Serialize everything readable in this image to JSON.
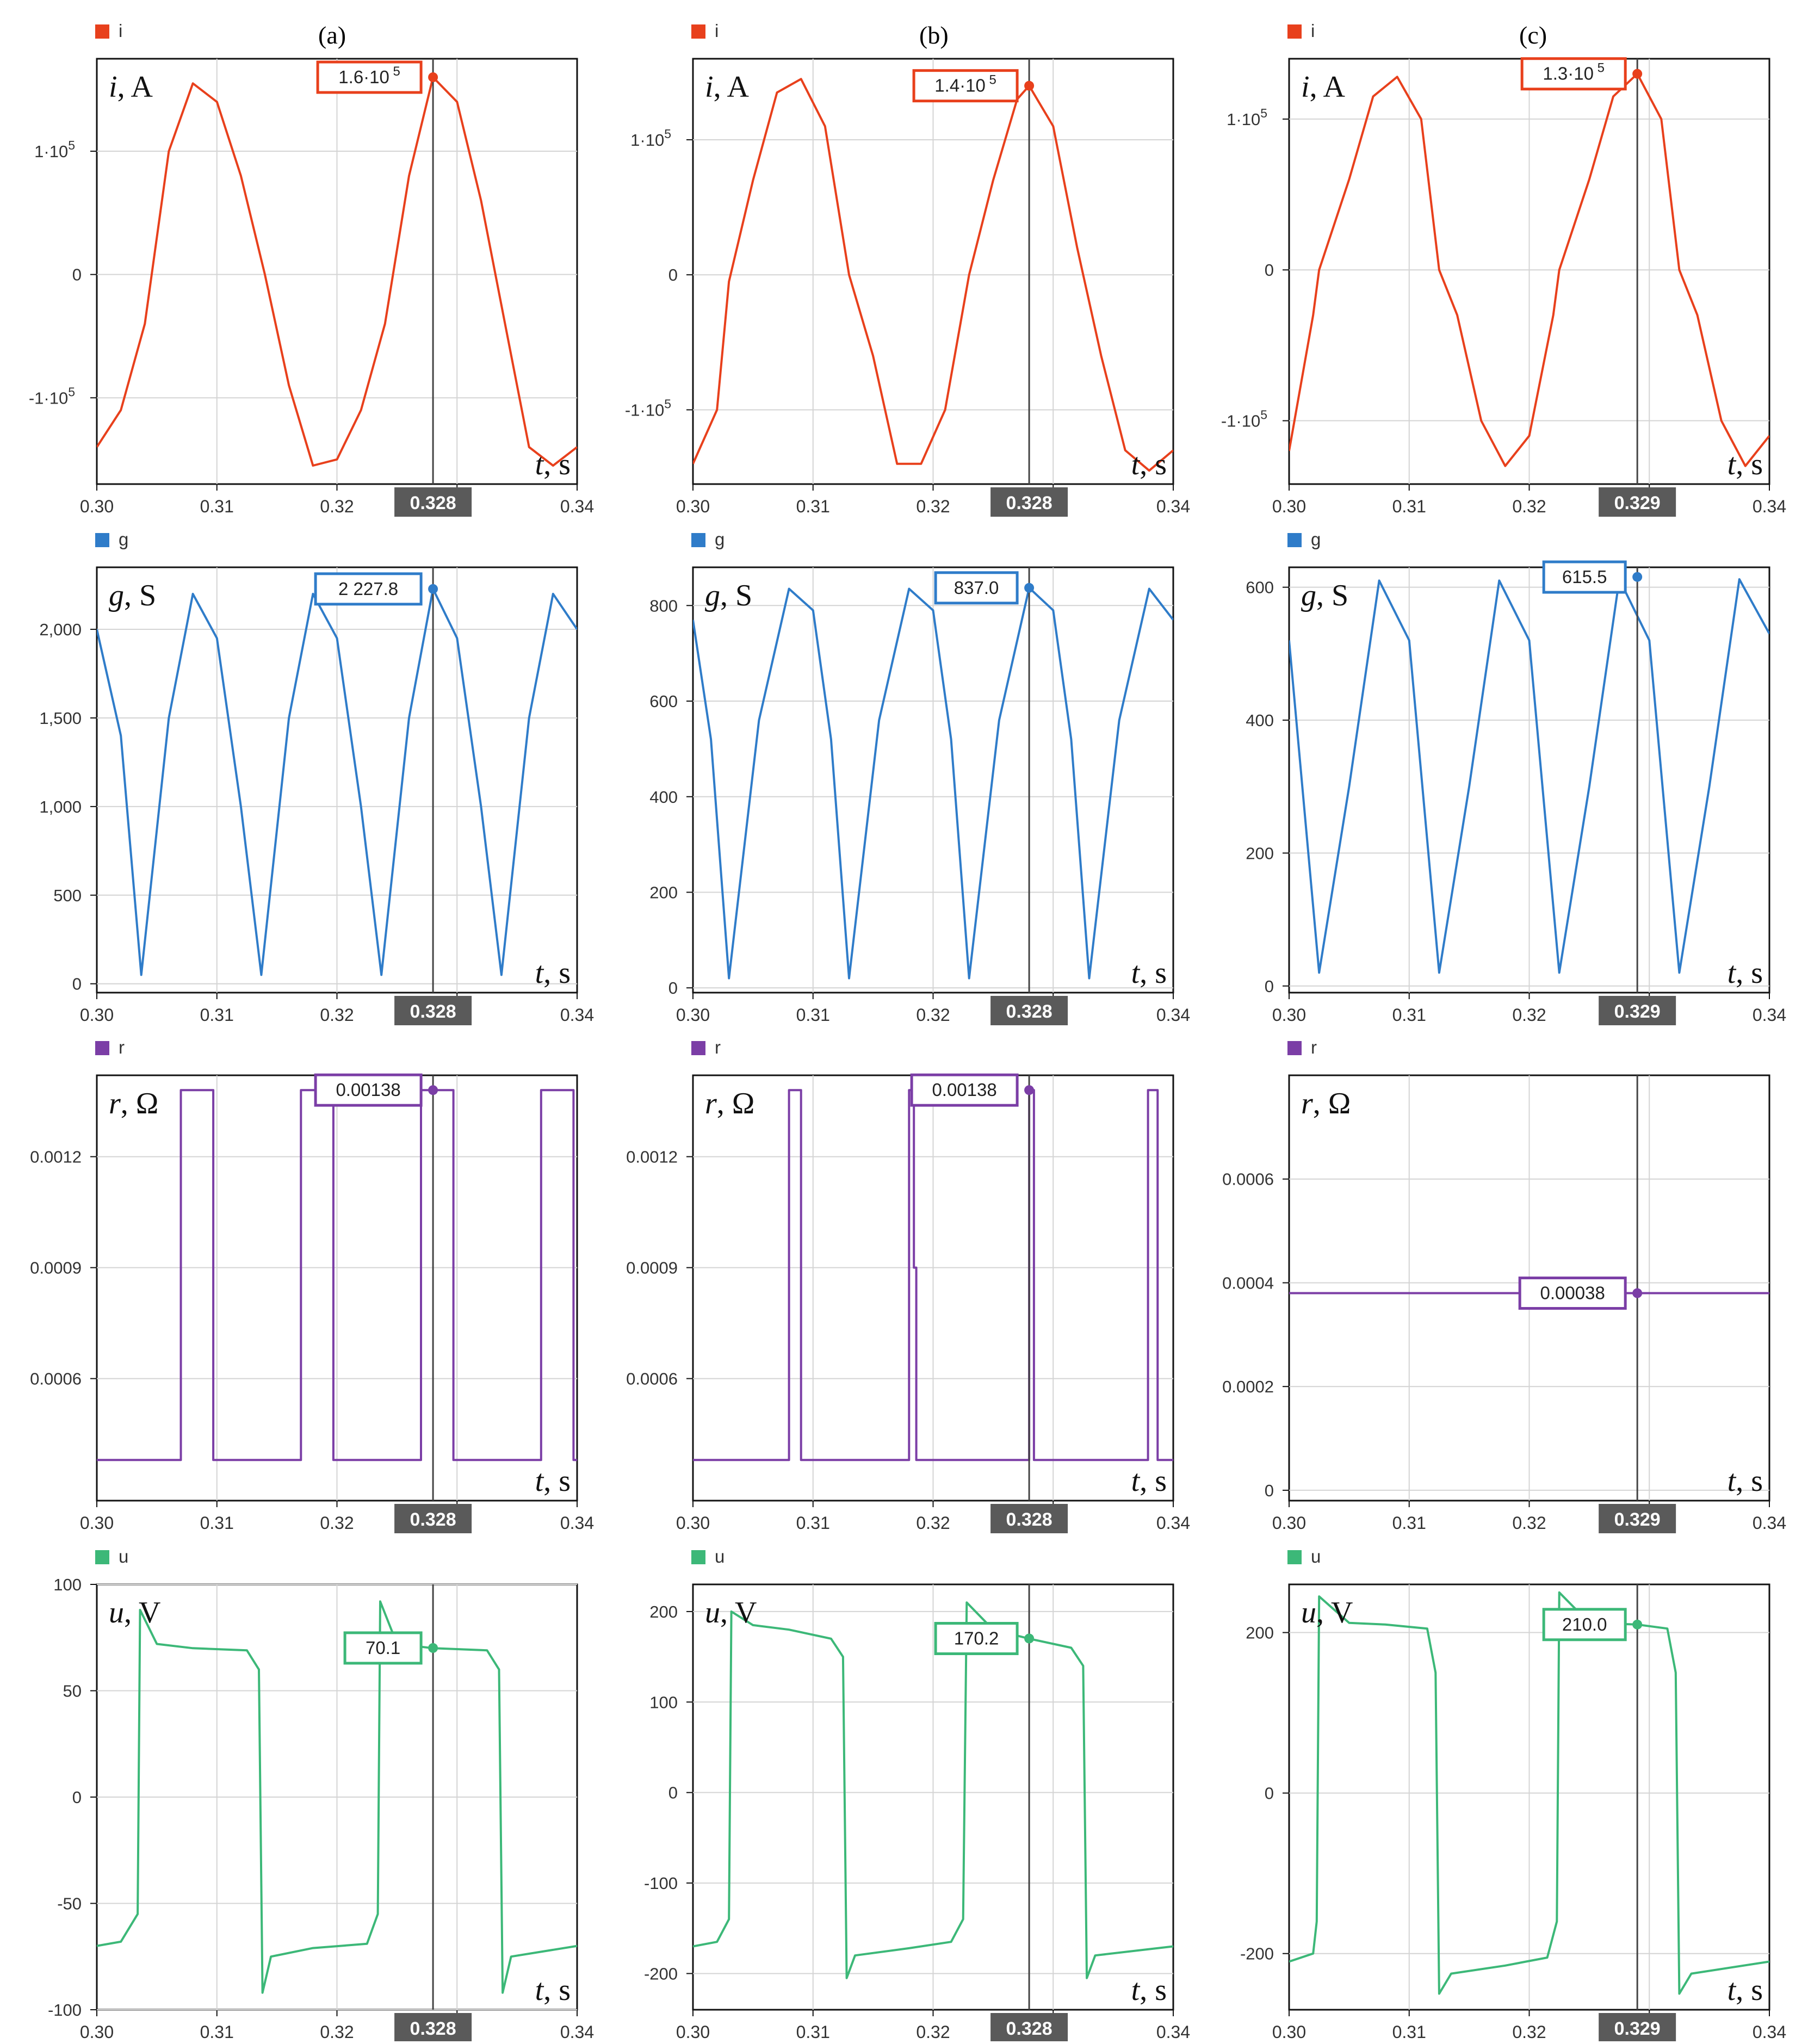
{
  "columns": [
    {
      "letter": "(a)",
      "cursor_time": 0.328,
      "cursor_label": "0.328"
    },
    {
      "letter": "(b)",
      "cursor_time": 0.328,
      "cursor_label": "0.328"
    },
    {
      "letter": "(c)",
      "cursor_time": 0.329,
      "cursor_label": "0.329"
    }
  ],
  "rows": [
    {
      "key": "i",
      "legend": "i",
      "color": "#e8401c",
      "axis_sym": "i",
      "axis_unit": ", A"
    },
    {
      "key": "g",
      "legend": "g",
      "color": "#2f7cc9",
      "axis_sym": "g",
      "axis_unit": ", S"
    },
    {
      "key": "r",
      "legend": "r",
      "color": "#7b3ea6",
      "axis_sym": "r",
      "axis_unit": ", Ω"
    },
    {
      "key": "u",
      "legend": "u",
      "color": "#3cb878",
      "axis_sym": "u",
      "axis_unit": ", V"
    }
  ],
  "x_axis_label": {
    "sym": "t",
    "unit": ", s"
  },
  "chart_data": [
    {
      "type": "line",
      "panel": "(a)",
      "series": "i",
      "ylabel": "i, A",
      "xlabel": "t, s",
      "xlim": [
        0.3,
        0.34
      ],
      "ylim": [
        -170000,
        175000
      ],
      "yticks": [
        {
          "v": 100000,
          "t": "1·10",
          "e": "5"
        },
        {
          "v": 0,
          "t": "0"
        },
        {
          "v": -100000,
          "t": "-1·10",
          "e": "5"
        }
      ],
      "xticks": [
        0.3,
        0.31,
        0.32,
        0.33,
        0.34
      ],
      "xtick_labels": [
        "0.30",
        "0.31",
        "0.32",
        "",
        "0.34"
      ],
      "x": [
        0.3,
        0.302,
        0.304,
        0.306,
        0.308,
        0.31,
        0.312,
        0.314,
        0.316,
        0.318,
        0.32,
        0.322,
        0.324,
        0.326,
        0.328,
        0.33,
        0.332,
        0.334,
        0.336,
        0.338,
        0.34
      ],
      "y": [
        -140000,
        -110000,
        -40000,
        100000,
        155000,
        140000,
        80000,
        0,
        -90000,
        -155000,
        -150000,
        -110000,
        -40000,
        80000,
        160000,
        140000,
        60000,
        -40000,
        -140000,
        -155000,
        -140000
      ],
      "marker": {
        "x": 0.328,
        "y": 160000,
        "text": "1.6·10",
        "exp": "5"
      }
    },
    {
      "type": "line",
      "panel": "(a)",
      "series": "g",
      "ylabel": "g, S",
      "xlabel": "t, s",
      "xlim": [
        0.3,
        0.34
      ],
      "ylim": [
        -50,
        2350
      ],
      "yticks": [
        {
          "v": 0,
          "t": "0"
        },
        {
          "v": 500,
          "t": "500"
        },
        {
          "v": 1000,
          "t": "1,000"
        },
        {
          "v": 1500,
          "t": "1,500"
        },
        {
          "v": 2000,
          "t": "2,000"
        }
      ],
      "xticks": [
        0.3,
        0.31,
        0.32,
        0.33,
        0.34
      ],
      "xtick_labels": [
        "0.30",
        "0.31",
        "0.32",
        "",
        "0.34"
      ],
      "x": [
        0.3,
        0.302,
        0.3037,
        0.306,
        0.308,
        0.31,
        0.312,
        0.3137,
        0.316,
        0.318,
        0.32,
        0.322,
        0.3237,
        0.326,
        0.328,
        0.33,
        0.332,
        0.3337,
        0.336,
        0.338,
        0.34
      ],
      "y": [
        2000,
        1400,
        50,
        1500,
        2200,
        1950,
        1000,
        50,
        1500,
        2200,
        1950,
        1000,
        50,
        1500,
        2228,
        1950,
        1000,
        50,
        1500,
        2200,
        2000
      ],
      "marker": {
        "x": 0.328,
        "y": 2227.8,
        "text": "2 227.8"
      }
    },
    {
      "type": "line",
      "panel": "(a)",
      "series": "r",
      "ylabel": "r, Ω",
      "xlabel": "t, s",
      "xlim": [
        0.3,
        0.34
      ],
      "ylim": [
        0.00027,
        0.00142
      ],
      "yticks": [
        {
          "v": 0.0006,
          "t": "0.0006"
        },
        {
          "v": 0.0009,
          "t": "0.0009"
        },
        {
          "v": 0.0012,
          "t": "0.0012"
        }
      ],
      "xticks": [
        0.3,
        0.31,
        0.32,
        0.33,
        0.34
      ],
      "xtick_labels": [
        "0.30",
        "0.31",
        "0.32",
        "",
        "0.34"
      ],
      "x": [
        0.3,
        0.307,
        0.307,
        0.3097,
        0.3097,
        0.317,
        0.317,
        0.3197,
        0.3197,
        0.327,
        0.327,
        0.3297,
        0.3297,
        0.337,
        0.337,
        0.3397,
        0.3397,
        0.34
      ],
      "y": [
        0.00038,
        0.00038,
        0.00138,
        0.00138,
        0.00038,
        0.00038,
        0.00138,
        0.00138,
        0.00038,
        0.00038,
        0.00138,
        0.00138,
        0.00038,
        0.00038,
        0.00138,
        0.00138,
        0.00038,
        0.00038
      ],
      "marker": {
        "x": 0.328,
        "y": 0.00138,
        "text": "0.00138"
      }
    },
    {
      "type": "line",
      "panel": "(a)",
      "series": "u",
      "ylabel": "u, V",
      "xlabel": "t, s",
      "xlim": [
        0.3,
        0.34
      ],
      "ylim": [
        -100,
        100
      ],
      "yticks": [
        {
          "v": -100,
          "t": "-100"
        },
        {
          "v": -50,
          "t": "-50"
        },
        {
          "v": 0,
          "t": "0"
        },
        {
          "v": 50,
          "t": "50"
        },
        {
          "v": 100,
          "t": "100"
        }
      ],
      "xticks": [
        0.3,
        0.31,
        0.32,
        0.33,
        0.34
      ],
      "xtick_labels": [
        "0.30",
        "0.31",
        "0.32",
        "",
        "0.34"
      ],
      "x": [
        0.3,
        0.302,
        0.3034,
        0.3036,
        0.305,
        0.308,
        0.3125,
        0.3135,
        0.3138,
        0.3145,
        0.318,
        0.3225,
        0.3234,
        0.3236,
        0.325,
        0.328,
        0.3325,
        0.3335,
        0.3338,
        0.3345,
        0.34
      ],
      "y": [
        -70,
        -68,
        -55,
        88,
        72,
        70,
        69,
        60,
        -92,
        -75,
        -71,
        -69,
        -55,
        92,
        72,
        70,
        69,
        60,
        -92,
        -75,
        -70
      ],
      "marker": {
        "x": 0.328,
        "y": 70.1,
        "text": "70.1"
      }
    },
    {
      "type": "line",
      "panel": "(b)",
      "series": "i",
      "ylabel": "i, A",
      "xlabel": "t, s",
      "xlim": [
        0.3,
        0.34
      ],
      "ylim": [
        -155000,
        160000
      ],
      "yticks": [
        {
          "v": 100000,
          "t": "1·10",
          "e": "5"
        },
        {
          "v": 0,
          "t": "0"
        },
        {
          "v": -100000,
          "t": "-1·10",
          "e": "5"
        }
      ],
      "xticks": [
        0.3,
        0.31,
        0.32,
        0.33,
        0.34
      ],
      "xtick_labels": [
        "0.30",
        "0.31",
        "0.32",
        "",
        "0.34"
      ],
      "x": [
        0.3,
        0.302,
        0.303,
        0.305,
        0.307,
        0.309,
        0.311,
        0.313,
        0.315,
        0.317,
        0.319,
        0.321,
        0.323,
        0.325,
        0.327,
        0.328,
        0.33,
        0.332,
        0.334,
        0.336,
        0.338,
        0.34
      ],
      "y": [
        -140000,
        -100000,
        -5000,
        70000,
        135000,
        145000,
        110000,
        0,
        -60000,
        -140000,
        -140000,
        -100000,
        0,
        70000,
        130000,
        140000,
        110000,
        20000,
        -60000,
        -130000,
        -145000,
        -130000
      ],
      "marker": {
        "x": 0.328,
        "y": 140000,
        "text": "1.4·10",
        "exp": "5"
      }
    },
    {
      "type": "line",
      "panel": "(b)",
      "series": "g",
      "ylabel": "g, S",
      "xlabel": "t, s",
      "xlim": [
        0.3,
        0.34
      ],
      "ylim": [
        -10,
        880
      ],
      "yticks": [
        {
          "v": 0,
          "t": "0"
        },
        {
          "v": 200,
          "t": "200"
        },
        {
          "v": 400,
          "t": "400"
        },
        {
          "v": 600,
          "t": "600"
        },
        {
          "v": 800,
          "t": "800"
        }
      ],
      "xticks": [
        0.3,
        0.31,
        0.32,
        0.33,
        0.34
      ],
      "xtick_labels": [
        "0.30",
        "0.31",
        "0.32",
        "",
        "0.34"
      ],
      "x": [
        0.3,
        0.3015,
        0.303,
        0.3055,
        0.308,
        0.31,
        0.3115,
        0.313,
        0.3155,
        0.318,
        0.32,
        0.3215,
        0.323,
        0.3255,
        0.328,
        0.33,
        0.3315,
        0.333,
        0.3355,
        0.338,
        0.34
      ],
      "y": [
        770,
        520,
        20,
        560,
        835,
        790,
        520,
        20,
        560,
        835,
        790,
        520,
        20,
        560,
        837,
        790,
        520,
        20,
        560,
        835,
        770
      ],
      "marker": {
        "x": 0.328,
        "y": 837.0,
        "text": "837.0"
      }
    },
    {
      "type": "line",
      "panel": "(b)",
      "series": "r",
      "ylabel": "r, Ω",
      "xlabel": "t, s",
      "xlim": [
        0.3,
        0.34
      ],
      "ylim": [
        0.00027,
        0.00142
      ],
      "yticks": [
        {
          "v": 0.0006,
          "t": "0.0006"
        },
        {
          "v": 0.0009,
          "t": "0.0009"
        },
        {
          "v": 0.0012,
          "t": "0.0012"
        }
      ],
      "xticks": [
        0.3,
        0.31,
        0.32,
        0.33,
        0.34
      ],
      "xtick_labels": [
        "0.30",
        "0.31",
        "0.32",
        "",
        "0.34"
      ],
      "x": [
        0.3,
        0.308,
        0.308,
        0.309,
        0.309,
        0.318,
        0.318,
        0.3184,
        0.3184,
        0.3186,
        0.3186,
        0.328,
        0.328,
        0.3284,
        0.3284,
        0.3379,
        0.3379,
        0.3387,
        0.3387,
        0.34
      ],
      "y": [
        0.00038,
        0.00038,
        0.00138,
        0.00138,
        0.00038,
        0.00038,
        0.00138,
        0.00138,
        0.0009,
        0.0009,
        0.00038,
        0.00038,
        0.00138,
        0.00138,
        0.00038,
        0.00038,
        0.00138,
        0.00138,
        0.00038,
        0.00038
      ],
      "marker": {
        "x": 0.328,
        "y": 0.00138,
        "text": "0.00138"
      }
    },
    {
      "type": "line",
      "panel": "(b)",
      "series": "u",
      "ylabel": "u, V",
      "xlabel": "t, s",
      "xlim": [
        0.3,
        0.34
      ],
      "ylim": [
        -240,
        230
      ],
      "yticks": [
        {
          "v": -200,
          "t": "-200"
        },
        {
          "v": -100,
          "t": "-100"
        },
        {
          "v": 0,
          "t": "0"
        },
        {
          "v": 100,
          "t": "100"
        },
        {
          "v": 200,
          "t": "200"
        }
      ],
      "xticks": [
        0.3,
        0.31,
        0.32,
        0.33,
        0.34
      ],
      "xtick_labels": [
        "0.30",
        "0.31",
        "0.32",
        "",
        "0.34"
      ],
      "x": [
        0.3,
        0.302,
        0.303,
        0.3032,
        0.305,
        0.308,
        0.3115,
        0.3125,
        0.3128,
        0.3135,
        0.318,
        0.3215,
        0.3225,
        0.3228,
        0.325,
        0.328,
        0.3315,
        0.3325,
        0.3328,
        0.3335,
        0.34
      ],
      "y": [
        -170,
        -165,
        -140,
        200,
        185,
        180,
        170,
        150,
        -205,
        -180,
        -172,
        -165,
        -140,
        210,
        180,
        170,
        160,
        140,
        -205,
        -180,
        -170
      ],
      "marker": {
        "x": 0.328,
        "y": 170.2,
        "text": "170.2"
      }
    },
    {
      "type": "line",
      "panel": "(c)",
      "series": "i",
      "ylabel": "i, A",
      "xlabel": "t, s",
      "xlim": [
        0.3,
        0.34
      ],
      "ylim": [
        -142000,
        140000
      ],
      "yticks": [
        {
          "v": 100000,
          "t": "1·10",
          "e": "5"
        },
        {
          "v": 0,
          "t": "0"
        },
        {
          "v": -100000,
          "t": "-1·10",
          "e": "5"
        }
      ],
      "xticks": [
        0.3,
        0.31,
        0.32,
        0.33,
        0.34
      ],
      "xtick_labels": [
        "0.30",
        "0.31",
        "0.32",
        "",
        "0.34"
      ],
      "x": [
        0.3,
        0.302,
        0.3025,
        0.305,
        0.307,
        0.309,
        0.311,
        0.3125,
        0.314,
        0.316,
        0.318,
        0.32,
        0.322,
        0.3225,
        0.325,
        0.327,
        0.329,
        0.331,
        0.3325,
        0.334,
        0.336,
        0.338,
        0.34
      ],
      "y": [
        -120000,
        -30000,
        0,
        60000,
        115000,
        128000,
        100000,
        0,
        -30000,
        -100000,
        -130000,
        -110000,
        -30000,
        0,
        60000,
        115000,
        130000,
        100000,
        0,
        -30000,
        -100000,
        -130000,
        -110000
      ],
      "marker": {
        "x": 0.329,
        "y": 130000,
        "text": "1.3·10",
        "exp": "5"
      }
    },
    {
      "type": "line",
      "panel": "(c)",
      "series": "g",
      "ylabel": "g, S",
      "xlabel": "t, s",
      "xlim": [
        0.3,
        0.34
      ],
      "ylim": [
        -10,
        630
      ],
      "yticks": [
        {
          "v": 0,
          "t": "0"
        },
        {
          "v": 200,
          "t": "200"
        },
        {
          "v": 400,
          "t": "400"
        },
        {
          "v": 600,
          "t": "600"
        }
      ],
      "xticks": [
        0.3,
        0.31,
        0.32,
        0.33,
        0.34
      ],
      "xtick_labels": [
        "0.30",
        "0.31",
        "0.32",
        "",
        "0.34"
      ],
      "x": [
        0.3,
        0.3025,
        0.305,
        0.3075,
        0.31,
        0.3125,
        0.315,
        0.3175,
        0.32,
        0.3225,
        0.325,
        0.3275,
        0.33,
        0.3325,
        0.335,
        0.3375,
        0.34
      ],
      "y": [
        520,
        20,
        300,
        610,
        520,
        20,
        300,
        610,
        520,
        20,
        300,
        612,
        520,
        20,
        300,
        612,
        530
      ],
      "marker": {
        "x": 0.329,
        "y": 615.5,
        "text": "615.5"
      }
    },
    {
      "type": "line",
      "panel": "(c)",
      "series": "r",
      "ylabel": "r, Ω",
      "xlabel": "t, s",
      "xlim": [
        0.3,
        0.34
      ],
      "ylim": [
        -2e-05,
        0.0008
      ],
      "yticks": [
        {
          "v": 0,
          "t": "0"
        },
        {
          "v": 0.0002,
          "t": "0.0002"
        },
        {
          "v": 0.0004,
          "t": "0.0004"
        },
        {
          "v": 0.0006,
          "t": "0.0006"
        }
      ],
      "xticks": [
        0.3,
        0.31,
        0.32,
        0.33,
        0.34
      ],
      "xtick_labels": [
        "0.30",
        "0.31",
        "0.32",
        "",
        "0.34"
      ],
      "x": [
        0.3,
        0.34
      ],
      "y": [
        0.00038,
        0.00038
      ],
      "marker": {
        "x": 0.329,
        "y": 0.00038,
        "text": "0.00038"
      }
    },
    {
      "type": "line",
      "panel": "(c)",
      "series": "u",
      "ylabel": "u, V",
      "xlabel": "t, s",
      "xlim": [
        0.3,
        0.34
      ],
      "ylim": [
        -270,
        260
      ],
      "yticks": [
        {
          "v": -200,
          "t": "-200"
        },
        {
          "v": 0,
          "t": "0"
        },
        {
          "v": 200,
          "t": "200"
        }
      ],
      "xticks": [
        0.3,
        0.31,
        0.32,
        0.33,
        0.34
      ],
      "xtick_labels": [
        "0.30",
        "0.31",
        "0.32",
        "",
        "0.34"
      ],
      "x": [
        0.3,
        0.302,
        0.3023,
        0.3025,
        0.305,
        0.308,
        0.3115,
        0.3122,
        0.3125,
        0.3135,
        0.318,
        0.3215,
        0.3223,
        0.3225,
        0.325,
        0.329,
        0.3315,
        0.3322,
        0.3325,
        0.3335,
        0.34
      ],
      "y": [
        -210,
        -200,
        -160,
        245,
        212,
        210,
        205,
        150,
        -250,
        -225,
        -215,
        -205,
        -160,
        250,
        212,
        210,
        205,
        150,
        -250,
        -225,
        -210
      ],
      "marker": {
        "x": 0.329,
        "y": 210.0,
        "text": "210.0"
      }
    }
  ]
}
